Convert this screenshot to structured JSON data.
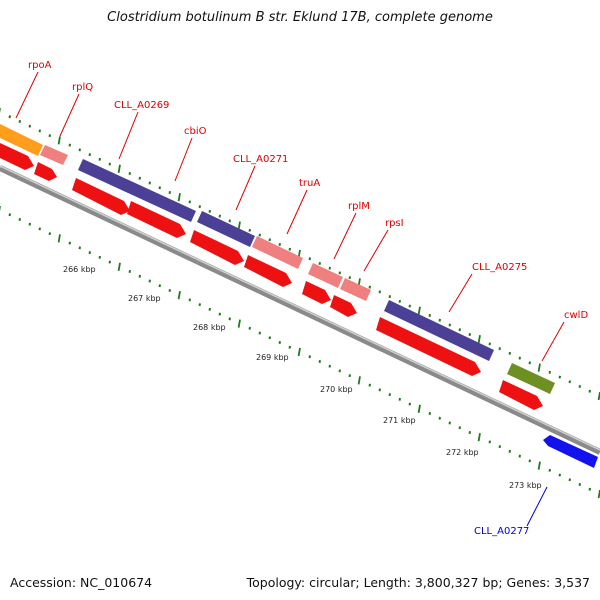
{
  "title": "Clostridium botulinum B str. Eklund 17B, complete genome",
  "footer": {
    "accession": "Accession: NC_010674",
    "summary": "Topology: circular; Length: 3,800,327 bp; Genes: 3,537"
  },
  "colors": {
    "backbone": "#8a8a8a",
    "tick": "#1d7a1d",
    "label_red": "#dd0000",
    "label_blue": "#0000cc",
    "cds_red": "#ee1111",
    "rna_pink": "#f08080",
    "purple": "#4b3f96",
    "orange": "#ff9d1c",
    "olive": "#6e8f22",
    "blue": "#1212ee"
  },
  "scale_labels": [
    "266 kbp",
    "267 kbp",
    "268 kbp",
    "269 kbp",
    "270 kbp",
    "271 kbp",
    "272 kbp",
    "273 kbp"
  ],
  "genes": [
    {
      "label": "rpoA",
      "color": "red"
    },
    {
      "label": "rplQ",
      "color": "red"
    },
    {
      "label": "CLL_A0269",
      "color": "red"
    },
    {
      "label": "cbiO",
      "color": "red"
    },
    {
      "label": "CLL_A0271",
      "color": "red"
    },
    {
      "label": "truA",
      "color": "red"
    },
    {
      "label": "rplM",
      "color": "red"
    },
    {
      "label": "rpsI",
      "color": "red"
    },
    {
      "label": "CLL_A0275",
      "color": "red"
    },
    {
      "label": "cwlD",
      "color": "red"
    },
    {
      "label": "CLL_A0277",
      "color": "blue"
    }
  ]
}
